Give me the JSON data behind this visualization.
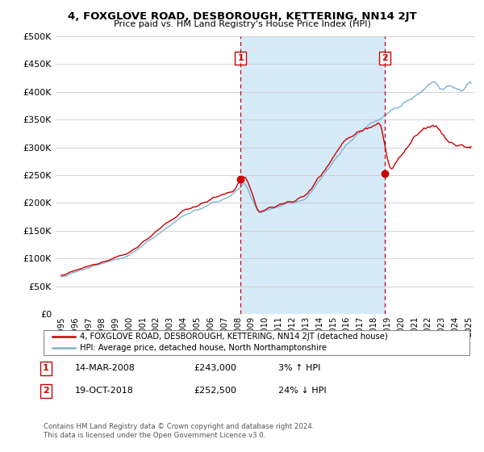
{
  "title": "4, FOXGLOVE ROAD, DESBOROUGH, KETTERING, NN14 2JT",
  "subtitle": "Price paid vs. HM Land Registry's House Price Index (HPI)",
  "ylim": [
    0,
    500000
  ],
  "yticks": [
    0,
    50000,
    100000,
    150000,
    200000,
    250000,
    300000,
    350000,
    400000,
    450000,
    500000
  ],
  "sale1_x": 2008.2,
  "sale1_y": 243000,
  "sale1_label": "1",
  "sale1_date": "14-MAR-2008",
  "sale1_price": "£243,000",
  "sale1_hpi": "3% ↑ HPI",
  "sale2_x": 2018.8,
  "sale2_y": 252500,
  "sale2_label": "2",
  "sale2_date": "19-OCT-2018",
  "sale2_price": "£252,500",
  "sale2_hpi": "24% ↓ HPI",
  "legend_line1": "4, FOXGLOVE ROAD, DESBOROUGH, KETTERING, NN14 2JT (detached house)",
  "legend_line2": "HPI: Average price, detached house, North Northamptonshire",
  "footer1": "Contains HM Land Registry data © Crown copyright and database right 2024.",
  "footer2": "This data is licensed under the Open Government Licence v3.0.",
  "line_color_red": "#cc0000",
  "line_color_blue": "#7fb3d3",
  "shade_color": "#d6eaf8",
  "background_color": "#ffffff",
  "grid_color": "#cccccc",
  "sale_marker_color": "#cc0000",
  "vline_color": "#cc0000",
  "box_edge_color": "#cc0000",
  "xlim_left": 1994.6,
  "xlim_right": 2025.4
}
